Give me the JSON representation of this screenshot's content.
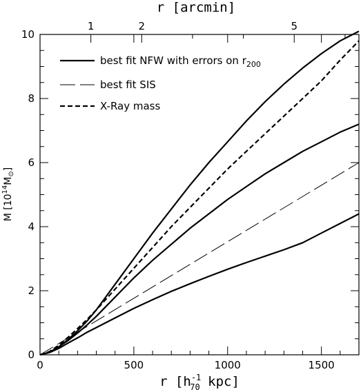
{
  "chart_data": {
    "type": "line",
    "xlabel": "r [h",
    "xlabel_sup": "-1",
    "xlabel_sub": "70",
    "xlabel_tail": " kpc]",
    "x2label": "r [arcmin]",
    "ylabel_prefix": "M [10",
    "ylabel_sup": "14",
    "ylabel_mid": "M",
    "ylabel_sub": "⊙",
    "ylabel_suffix": "]",
    "xlim": [
      0,
      1700
    ],
    "ylim": [
      0,
      10
    ],
    "x_ticks": [
      0,
      500,
      1000,
      1500
    ],
    "x_tick_labels": [
      "0",
      "500",
      "1000",
      "1500"
    ],
    "y_ticks": [
      0,
      2,
      4,
      6,
      8,
      10
    ],
    "y_tick_labels": [
      "0",
      "2",
      "4",
      "6",
      "8",
      "10"
    ],
    "x2_tick_positions_kpc": [
      271,
      542,
      1355
    ],
    "x2_tick_labels": [
      "1",
      "2",
      "5"
    ],
    "legend_placement": "top-left",
    "legend": [
      {
        "label": "best fit NFW with errors on r",
        "sub": "200",
        "style": "solid"
      },
      {
        "label": "best fit SIS",
        "sub": "",
        "style": "longdash"
      },
      {
        "label": "X-Ray mass",
        "sub": "",
        "style": "shortdash"
      }
    ],
    "series": [
      {
        "style": "solid",
        "x": [
          0,
          50,
          100,
          150,
          200,
          250,
          300,
          400,
          500,
          600,
          700,
          800,
          900,
          1000,
          1100,
          1200,
          1300,
          1400,
          1500,
          1600,
          1700
        ],
        "y": [
          0,
          0.08,
          0.25,
          0.48,
          0.75,
          1.05,
          1.4,
          2.2,
          3.0,
          3.8,
          4.55,
          5.3,
          6.0,
          6.65,
          7.3,
          7.9,
          8.45,
          8.95,
          9.4,
          9.8,
          10.1
        ]
      },
      {
        "style": "solid",
        "x": [
          0,
          50,
          100,
          150,
          200,
          250,
          300,
          400,
          500,
          600,
          700,
          800,
          900,
          1000,
          1100,
          1200,
          1300,
          1400,
          1500,
          1600,
          1700
        ],
        "y": [
          0,
          0.08,
          0.25,
          0.45,
          0.68,
          0.93,
          1.2,
          1.8,
          2.4,
          2.95,
          3.45,
          3.95,
          4.4,
          4.85,
          5.25,
          5.65,
          6.0,
          6.35,
          6.65,
          6.95,
          7.2
        ]
      },
      {
        "style": "solid",
        "x": [
          0,
          50,
          100,
          150,
          200,
          250,
          300,
          400,
          500,
          600,
          700,
          800,
          900,
          1000,
          1100,
          1200,
          1300,
          1400,
          1500,
          1600,
          1700
        ],
        "y": [
          0,
          0.07,
          0.2,
          0.37,
          0.53,
          0.7,
          0.85,
          1.15,
          1.45,
          1.72,
          1.98,
          2.22,
          2.45,
          2.67,
          2.88,
          3.08,
          3.28,
          3.5,
          3.8,
          4.1,
          4.4
        ]
      },
      {
        "style": "longdash",
        "x": [
          0,
          1700
        ],
        "y": [
          0,
          6.0
        ]
      },
      {
        "style": "shortdash",
        "x": [
          0,
          50,
          100,
          150,
          200,
          250,
          300,
          400,
          500,
          600,
          700,
          800,
          900,
          1000,
          1100,
          1200,
          1300,
          1400,
          1500,
          1600,
          1700
        ],
        "y": [
          0,
          0.1,
          0.3,
          0.55,
          0.82,
          1.1,
          1.4,
          2.05,
          2.7,
          3.35,
          4.0,
          4.6,
          5.2,
          5.8,
          6.35,
          6.9,
          7.45,
          8.0,
          8.55,
          9.2,
          9.8
        ]
      }
    ]
  }
}
